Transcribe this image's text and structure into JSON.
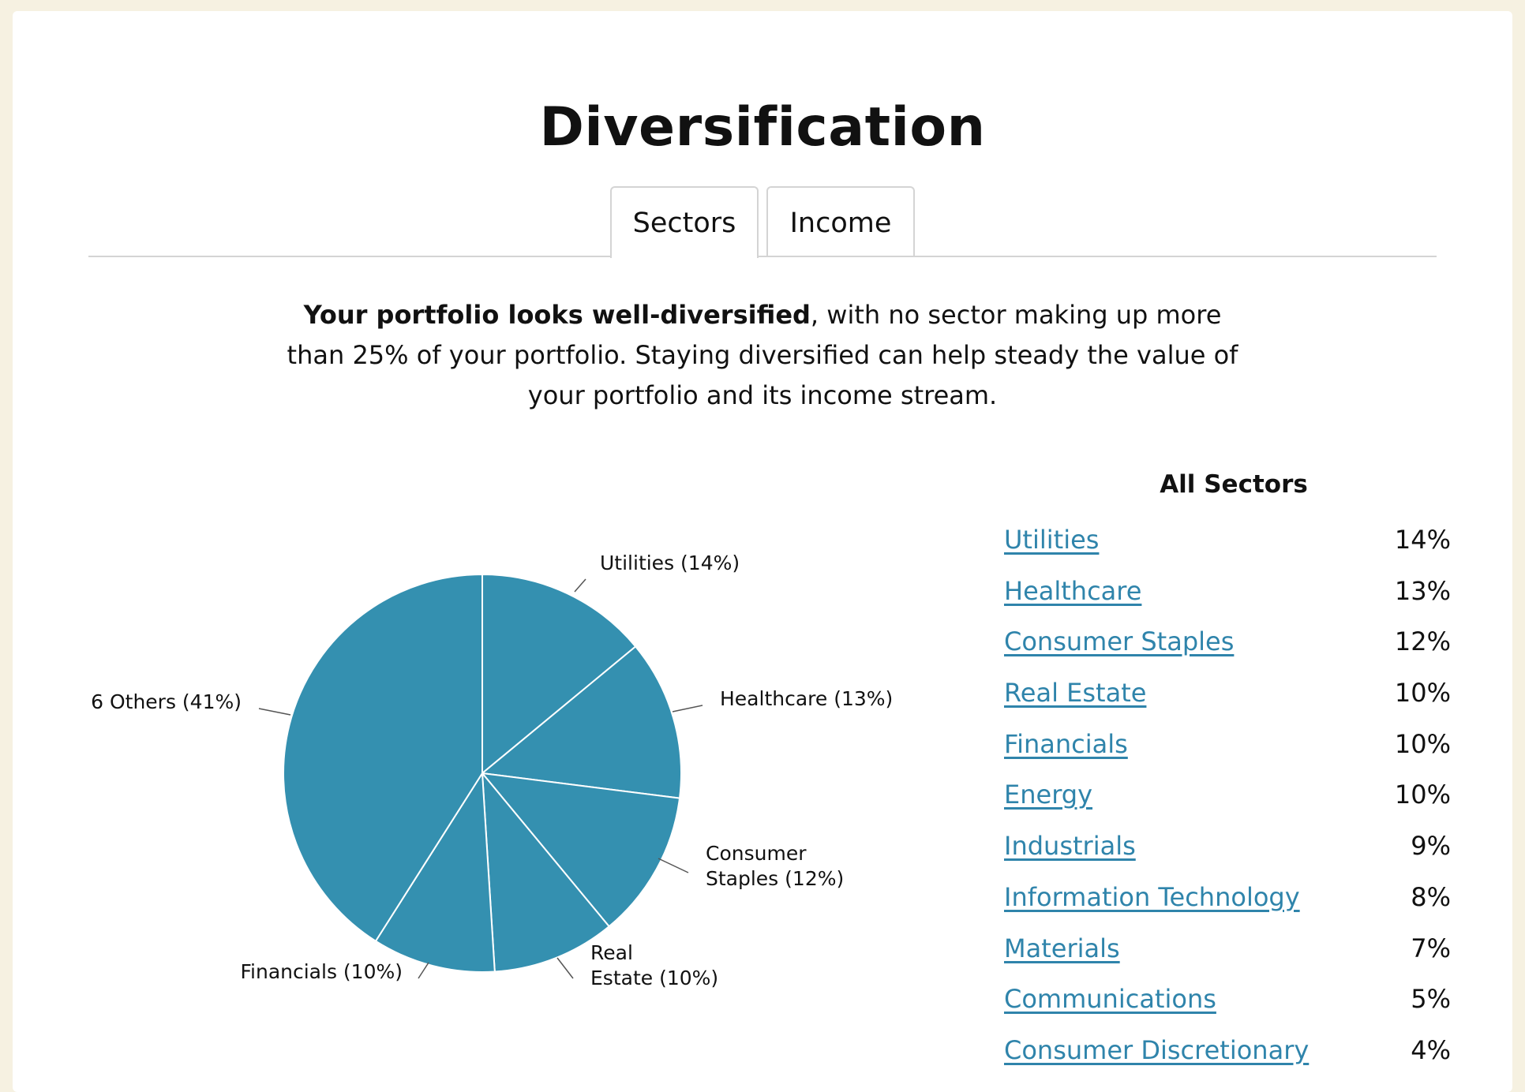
{
  "page": {
    "title": "Diversification",
    "tabs": [
      {
        "label": "Sectors",
        "active": true
      },
      {
        "label": "Income",
        "active": false
      }
    ],
    "summary": {
      "bold": "Your portfolio looks well-diversified",
      "rest": ", with no sector making up more than 25% of your portfolio. Staying diversified can help steady the value of your portfolio and its income stream."
    },
    "accent_color": "#3490b0",
    "link_color": "#2f84ab"
  },
  "chart_data": [
    {
      "type": "pie",
      "title": "",
      "slices": [
        {
          "label": "Utilities",
          "value": 14,
          "display": [
            "Utilities (14%)"
          ]
        },
        {
          "label": "Healthcare",
          "value": 13,
          "display": [
            "Healthcare (13%)"
          ]
        },
        {
          "label": "Consumer Staples",
          "value": 12,
          "display": [
            "Consumer",
            "Staples (12%)"
          ]
        },
        {
          "label": "Real Estate",
          "value": 10,
          "display": [
            "Real",
            "Estate (10%)"
          ]
        },
        {
          "label": "Financials",
          "value": 10,
          "display": [
            "Financials (10%)"
          ]
        },
        {
          "label": "6 Others",
          "value": 41,
          "display": [
            "6 Others (41%)"
          ]
        }
      ],
      "start": "12 o'clock",
      "direction": "clockwise",
      "color": "#3490b0"
    },
    {
      "type": "table",
      "title": "All Sectors",
      "rows": [
        {
          "sector": "Utilities",
          "percent": "14%"
        },
        {
          "sector": "Healthcare",
          "percent": "13%"
        },
        {
          "sector": "Consumer Staples",
          "percent": "12%"
        },
        {
          "sector": "Real Estate",
          "percent": "10%"
        },
        {
          "sector": "Financials",
          "percent": "10%"
        },
        {
          "sector": "Energy",
          "percent": "10%"
        },
        {
          "sector": "Industrials",
          "percent": "9%"
        },
        {
          "sector": "Information Technology",
          "percent": "8%"
        },
        {
          "sector": "Materials",
          "percent": "7%"
        },
        {
          "sector": "Communications",
          "percent": "5%"
        },
        {
          "sector": "Consumer Discretionary",
          "percent": "4%"
        }
      ]
    }
  ]
}
